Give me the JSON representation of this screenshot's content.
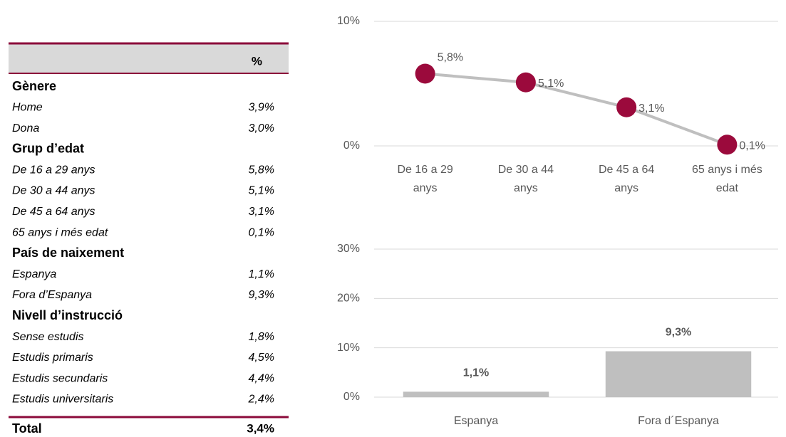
{
  "table": {
    "column": "%",
    "sections": [
      {
        "title": "Gènere",
        "rows": [
          [
            "Home",
            "3,9%"
          ],
          [
            "Dona",
            "3,0%"
          ]
        ]
      },
      {
        "title": "Grup d’edat",
        "rows": [
          [
            "De 16 a 29 anys",
            "5,8%"
          ],
          [
            "De 30 a 44 anys",
            "5,1%"
          ],
          [
            "De 45 a 64 anys",
            "3,1%"
          ],
          [
            "65 anys i més edat",
            "0,1%"
          ]
        ]
      },
      {
        "title": "País de naixement",
        "rows": [
          [
            "Espanya",
            "1,1%"
          ],
          [
            "Fora d’Espanya",
            "9,3%"
          ]
        ]
      },
      {
        "title": "Nivell d’instrucció",
        "rows": [
          [
            "Sense estudis",
            "1,8%"
          ],
          [
            "Estudis primaris",
            "4,5%"
          ],
          [
            "Estudis secundaris",
            "4,4%"
          ],
          [
            "Estudis universitaris",
            "2,4%"
          ]
        ]
      }
    ],
    "total": [
      "Total",
      "3,4%"
    ]
  },
  "chart_data": [
    {
      "type": "line",
      "categories": [
        "De 16 a 29 anys",
        "De 30 a 44 anys",
        "De 45 a 64 anys",
        "65 anys i més edat"
      ],
      "values": [
        5.8,
        5.1,
        3.1,
        0.1
      ],
      "value_labels": [
        "5,8%",
        "5,1%",
        "3,1%",
        "0,1%"
      ],
      "color": "#bfbfbf",
      "marker_color": "#9b0a3c",
      "ylim": [
        0,
        10
      ],
      "yticks": [
        {
          "value": 0,
          "label": "0%"
        },
        {
          "value": 10,
          "label": "10%"
        }
      ],
      "grid": true
    },
    {
      "type": "bar",
      "categories": [
        "Espanya",
        "Fora d´Espanya"
      ],
      "values": [
        1.1,
        9.3
      ],
      "value_labels": [
        "1,1%",
        "9,3%"
      ],
      "color": "#bfbfbf",
      "ylim": [
        0,
        30
      ],
      "yticks": [
        {
          "value": 0,
          "label": "0%"
        },
        {
          "value": 10,
          "label": "10%"
        },
        {
          "value": 20,
          "label": "20%"
        },
        {
          "value": 30,
          "label": "30%"
        }
      ],
      "grid": true
    }
  ]
}
